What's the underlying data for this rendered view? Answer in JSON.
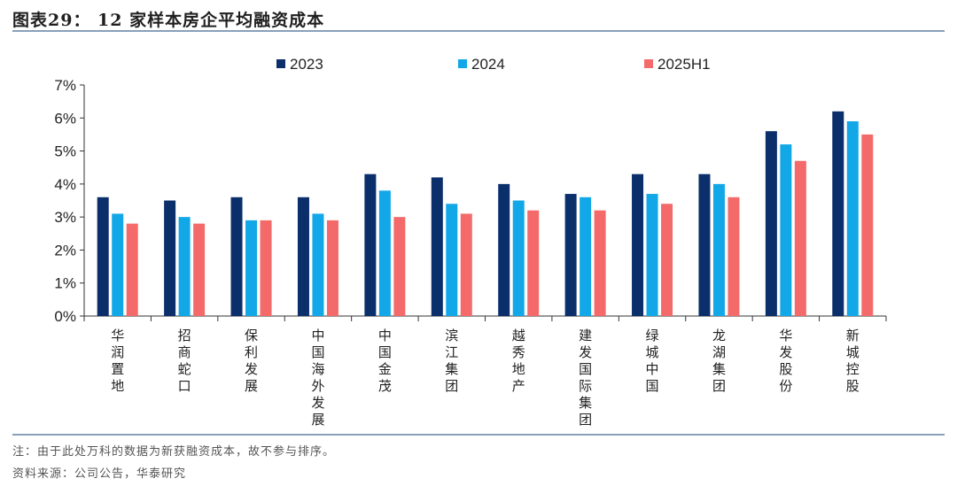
{
  "header": {
    "title": "图表29： 12 家样本房企平均融资成本"
  },
  "footer": {
    "note": "注：由于此处万科的数据为新获融资成本，故不参与排序。",
    "source": "资料来源：公司公告，华泰研究"
  },
  "chart_data": {
    "type": "bar",
    "title": "12 家样本房企平均融资成本",
    "xlabel": "",
    "ylabel": "",
    "ylim": [
      0,
      7
    ],
    "yticks": [
      "0%",
      "1%",
      "2%",
      "3%",
      "4%",
      "5%",
      "6%",
      "7%"
    ],
    "grid": false,
    "legend_position": "top",
    "categories": [
      "华润置地",
      "招商蛇口",
      "保利发展",
      "中国海外发展",
      "中国金茂",
      "滨江集团",
      "越秀地产",
      "建发国际集团",
      "绿城中国",
      "龙湖集团",
      "华发股份",
      "新城控股"
    ],
    "series": [
      {
        "name": "2023",
        "color": "#0b2f6b",
        "values": [
          3.6,
          3.5,
          3.6,
          3.6,
          4.3,
          4.2,
          4.0,
          3.7,
          4.3,
          4.3,
          5.6,
          6.2
        ]
      },
      {
        "name": "2024",
        "color": "#12a8e8",
        "values": [
          3.1,
          3.0,
          2.9,
          3.1,
          3.8,
          3.4,
          3.5,
          3.6,
          3.7,
          4.0,
          5.2,
          5.9
        ]
      },
      {
        "name": "2025H1",
        "color": "#f46a6a",
        "values": [
          2.8,
          2.8,
          2.9,
          2.9,
          3.0,
          3.1,
          3.2,
          3.2,
          3.4,
          3.6,
          4.7,
          5.5
        ]
      }
    ]
  }
}
